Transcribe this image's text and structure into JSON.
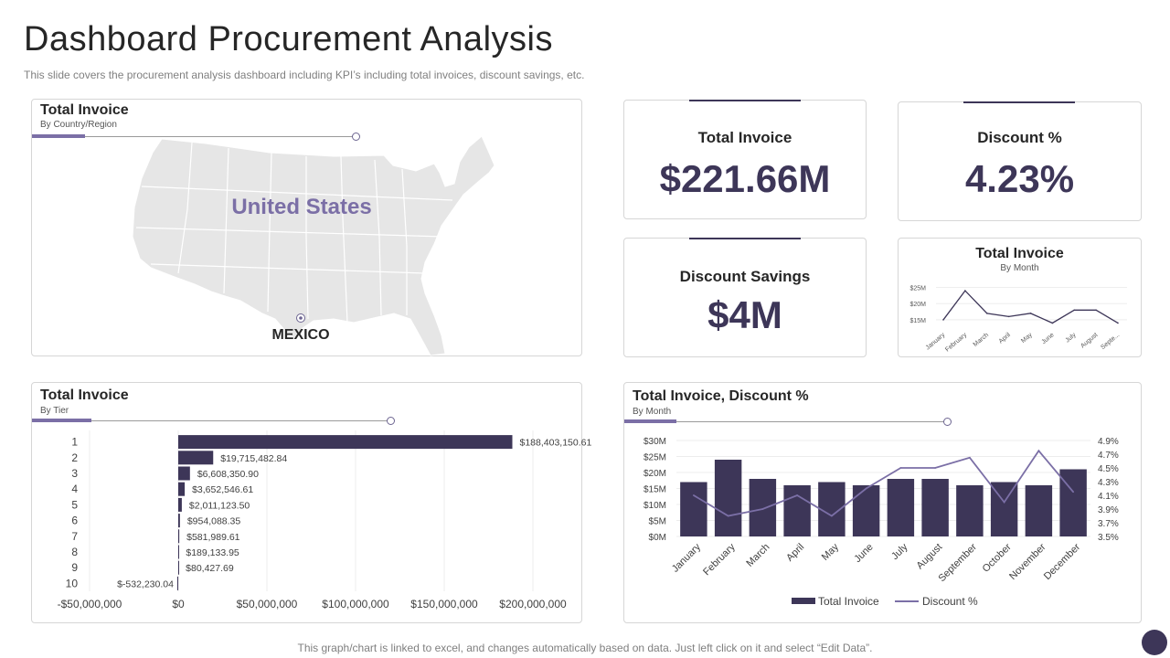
{
  "page": {
    "title": "Dashboard Procurement Analysis",
    "subtitle": "This slide covers the procurement analysis dashboard including KPI’s including total invoices, discount savings, etc.",
    "footer": "This graph/chart is linked to excel,  and changes automatically based on data. Just left click on it and select “Edit Data”."
  },
  "map_card": {
    "title": "Total Invoice",
    "subtitle": "By Country/Region",
    "label_us": "United States",
    "label_mexico": "MEXICO"
  },
  "kpis": {
    "total_invoice_label": "Total Invoice",
    "total_invoice_value": "$221.66M",
    "discount_pct_label": "Discount %",
    "discount_pct_value": "4.23%",
    "discount_savings_label": "Discount Savings",
    "discount_savings_value": "$4M"
  },
  "colors": {
    "primary": "#3d3658",
    "accent": "#7b6fa6",
    "map_fill": "#e6e6e6"
  },
  "chart_data": [
    {
      "id": "tier",
      "type": "bar",
      "orientation": "horizontal",
      "title": "Total Invoice",
      "subtitle": "By Tier",
      "categories": [
        "1",
        "2",
        "3",
        "4",
        "5",
        "6",
        "7",
        "8",
        "9",
        "10"
      ],
      "values": [
        188403150.61,
        19715482.84,
        6608350.9,
        3652546.61,
        2011123.5,
        954088.35,
        581989.61,
        189133.95,
        80427.69,
        -532230.04
      ],
      "value_labels": [
        "$188,403,150.61",
        "$19,715,482.84",
        "$6,608,350.90",
        "$3,652,546.61",
        "$2,011,123.50",
        "$954,088.35",
        "$581,989.61",
        "$189,133.95",
        "$80,427.69",
        "$-532,230.04"
      ],
      "xticks": [
        -50000000,
        0,
        50000000,
        100000000,
        150000000,
        200000000
      ],
      "xtick_labels": [
        "-$50,000,000",
        "$0",
        "$50,000,000",
        "$100,000,000",
        "$150,000,000",
        "$200,000,000"
      ],
      "xlim": [
        -50000000,
        200000000
      ],
      "grid": true
    },
    {
      "id": "monthly_small",
      "type": "line",
      "title": "Total Invoice",
      "subtitle": "By Month",
      "categories": [
        "January",
        "February",
        "March",
        "April",
        "May",
        "June",
        "July",
        "August",
        "Septe..."
      ],
      "values": [
        15,
        24,
        17,
        16,
        17,
        14,
        18,
        18,
        14
      ],
      "yticks": [
        15,
        20,
        25
      ],
      "ytick_labels": [
        "$15M",
        "$20M",
        "$25M"
      ],
      "ylim": [
        13,
        26
      ]
    },
    {
      "id": "monthly_combo",
      "type": "bar",
      "title": "Total Invoice, Discount %",
      "subtitle": "By Month",
      "categories": [
        "January",
        "February",
        "March",
        "April",
        "May",
        "June",
        "July",
        "August",
        "September",
        "October",
        "November",
        "December"
      ],
      "series": [
        {
          "name": "Total Invoice",
          "type": "bar",
          "axis": "left",
          "values": [
            17,
            24,
            18,
            16,
            17,
            16,
            18,
            18,
            16,
            17,
            16,
            21
          ]
        },
        {
          "name": "Discount %",
          "type": "line",
          "axis": "right",
          "values": [
            4.1,
            3.8,
            3.9,
            4.1,
            3.8,
            4.2,
            4.5,
            4.5,
            4.65,
            4.0,
            4.75,
            4.15
          ]
        }
      ],
      "ylim": [
        0,
        30
      ],
      "yticks": [
        0,
        5,
        10,
        15,
        20,
        25,
        30
      ],
      "ytick_labels": [
        "$0M",
        "$5M",
        "$10M",
        "$15M",
        "$20M",
        "$25M",
        "$30M"
      ],
      "y2lim": [
        3.5,
        4.9
      ],
      "y2ticks": [
        3.5,
        3.7,
        3.9,
        4.1,
        4.3,
        4.5,
        4.7,
        4.9
      ],
      "y2tick_labels": [
        "3.5%",
        "3.7%",
        "3.9%",
        "4.1%",
        "4.3%",
        "4.5%",
        "4.7%",
        "4.9%"
      ],
      "legend": "bottom",
      "legend_labels": [
        "Total Invoice",
        "Discount %"
      ],
      "grid": true
    }
  ]
}
